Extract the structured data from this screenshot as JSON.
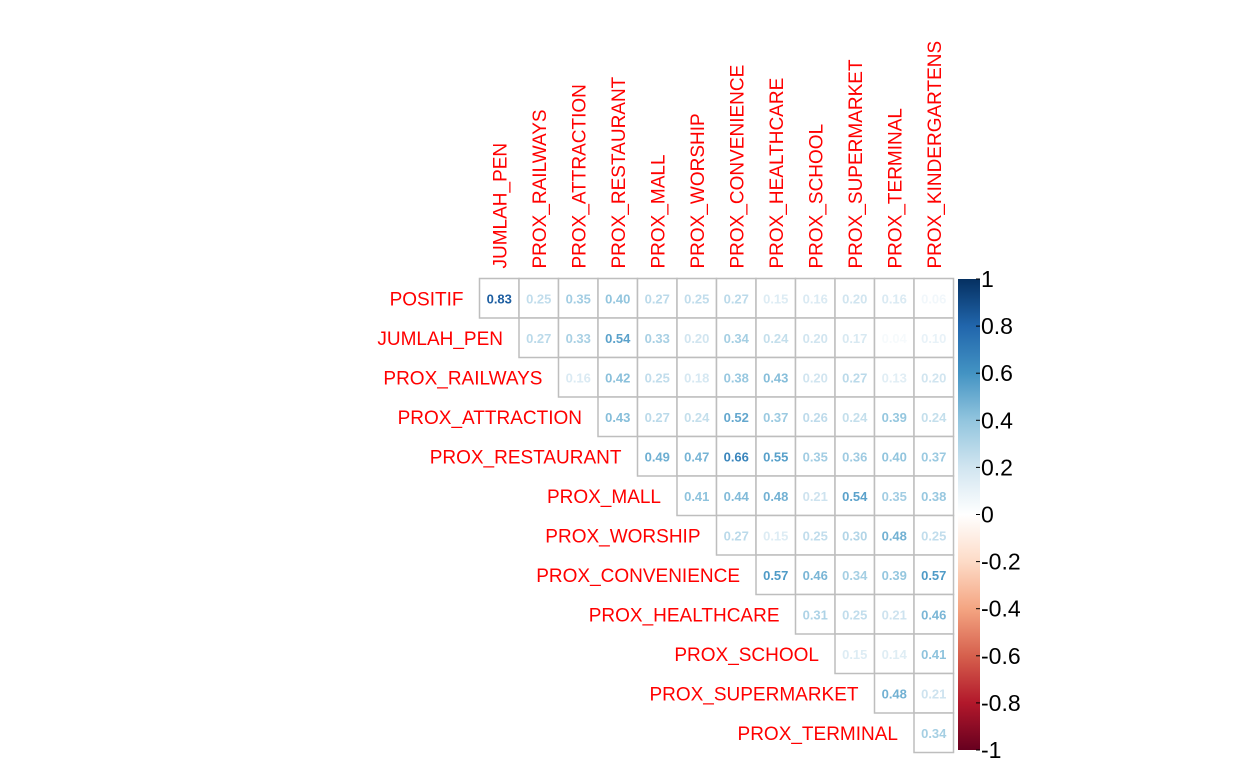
{
  "chart_data": {
    "type": "heatmap",
    "row_labels": [
      "POSITIF",
      "JUMLAH_PEN",
      "PROX_RAILWAYS",
      "PROX_ATTRACTION",
      "PROX_RESTAURANT",
      "PROX_MALL",
      "PROX_WORSHIP",
      "PROX_CONVENIENCE",
      "PROX_HEALTHCARE",
      "PROX_SCHOOL",
      "PROX_SUPERMARKET",
      "PROX_TERMINAL"
    ],
    "column_labels": [
      "JUMLAH_PEN",
      "PROX_RAILWAYS",
      "PROX_ATTRACTION",
      "PROX_RESTAURANT",
      "PROX_MALL",
      "PROX_WORSHIP",
      "PROX_CONVENIENCE",
      "PROX_HEALTHCARE",
      "PROX_SCHOOL",
      "PROX_SUPERMARKET",
      "PROX_TERMINAL",
      "PROX_KINDERGARTENS"
    ],
    "value_labels": [
      [
        "0.83",
        "0.25",
        "0.35",
        "0.40",
        "0.27",
        "0.25",
        "0.27",
        "0.15",
        "0.16",
        "0.20",
        "0.16",
        "0.06"
      ],
      [
        "0.27",
        "0.33",
        "0.54",
        "0.33",
        "0.20",
        "0.34",
        "0.24",
        "0.20",
        "0.17",
        "0.04",
        "0.10"
      ],
      [
        "0.16",
        "0.42",
        "0.25",
        "0.18",
        "0.38",
        "0.43",
        "0.20",
        "0.27",
        "0.13",
        "0.20"
      ],
      [
        "0.43",
        "0.27",
        "0.24",
        "0.52",
        "0.37",
        "0.26",
        "0.24",
        "0.39",
        "0.24"
      ],
      [
        "0.49",
        "0.47",
        "0.66",
        "0.55",
        "0.35",
        "0.36",
        "0.40",
        "0.37"
      ],
      [
        "0.41",
        "0.44",
        "0.48",
        "0.21",
        "0.54",
        "0.35",
        "0.38"
      ],
      [
        "0.27",
        "0.15",
        "0.25",
        "0.30",
        "0.48",
        "0.25"
      ],
      [
        "0.57",
        "0.46",
        "0.34",
        "0.39",
        "0.57"
      ],
      [
        "0.31",
        "0.25",
        "0.21",
        "0.46"
      ],
      [
        "0.15",
        "0.14",
        "0.41"
      ],
      [
        "0.48",
        "0.21"
      ],
      [
        "0.34"
      ]
    ],
    "layout": "upper-triangular",
    "colorbar": {
      "range": [
        -1,
        1
      ],
      "ticks": [
        "1",
        "0.8",
        "0.6",
        "0.4",
        "0.2",
        "0",
        "-0.2",
        "-0.4",
        "-0.6",
        "-0.8",
        "-1"
      ],
      "colors": [
        "#67001f",
        "#b2182b",
        "#d6604d",
        "#f4a582",
        "#fddbc7",
        "#ffffff",
        "#d1e5f0",
        "#92c5de",
        "#4393c3",
        "#2166ac",
        "#053061"
      ]
    },
    "label_color": "#ff0000",
    "grid_color": "#bebebe"
  }
}
